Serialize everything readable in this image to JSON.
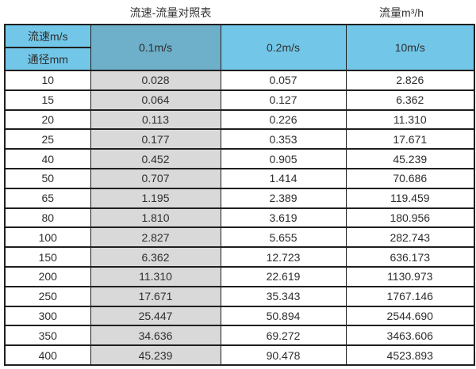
{
  "titles": {
    "left": "流速-流量对照表",
    "right": "流量m³/h"
  },
  "table": {
    "corner_top": "流速m/s",
    "corner_bottom": "通径mm",
    "columns": [
      "0.1m/s",
      "0.2m/s",
      "10m/s"
    ],
    "rows": [
      {
        "d": "10",
        "v": [
          "0.028",
          "0.057",
          "2.826"
        ]
      },
      {
        "d": "15",
        "v": [
          "0.064",
          "0.127",
          "6.362"
        ]
      },
      {
        "d": "20",
        "v": [
          "0.113",
          "0.226",
          "11.310"
        ]
      },
      {
        "d": "25",
        "v": [
          "0.177",
          "0.353",
          "17.671"
        ]
      },
      {
        "d": "40",
        "v": [
          "0.452",
          "0.905",
          "45.239"
        ]
      },
      {
        "d": "50",
        "v": [
          "0.707",
          "1.414",
          "70.686"
        ]
      },
      {
        "d": "65",
        "v": [
          "1.195",
          "2.389",
          "119.459"
        ]
      },
      {
        "d": "80",
        "v": [
          "1.810",
          "3.619",
          "180.956"
        ]
      },
      {
        "d": "100",
        "v": [
          "2.827",
          "5.655",
          "282.743"
        ]
      },
      {
        "d": "150",
        "v": [
          "6.362",
          "12.723",
          "636.173"
        ]
      },
      {
        "d": "200",
        "v": [
          "11.310",
          "22.619",
          "1130.973"
        ]
      },
      {
        "d": "250",
        "v": [
          "17.671",
          "35.343",
          "1767.146"
        ]
      },
      {
        "d": "300",
        "v": [
          "25.447",
          "50.894",
          "2544.690"
        ]
      },
      {
        "d": "350",
        "v": [
          "34.636",
          "69.272",
          "3463.606"
        ]
      },
      {
        "d": "400",
        "v": [
          "45.239",
          "90.478",
          "4523.893"
        ]
      }
    ]
  },
  "chart_data": {
    "type": "table",
    "title": "流速-流量对照表",
    "unit_label": "流量m³/h",
    "row_header": "通径mm",
    "col_header": "流速m/s",
    "categories": [
      10,
      15,
      20,
      25,
      40,
      50,
      65,
      80,
      100,
      150,
      200,
      250,
      300,
      350,
      400
    ],
    "series": [
      {
        "name": "0.1m/s",
        "values": [
          0.028,
          0.064,
          0.113,
          0.177,
          0.452,
          0.707,
          1.195,
          1.81,
          2.827,
          6.362,
          11.31,
          17.671,
          25.447,
          34.636,
          45.239
        ]
      },
      {
        "name": "0.2m/s",
        "values": [
          0.057,
          0.127,
          0.226,
          0.353,
          0.905,
          1.414,
          2.389,
          3.619,
          5.655,
          12.723,
          22.619,
          35.343,
          50.894,
          69.272,
          90.478
        ]
      },
      {
        "name": "10m/s",
        "values": [
          2.826,
          6.362,
          11.31,
          17.671,
          45.239,
          70.686,
          119.459,
          180.956,
          282.743,
          636.173,
          1130.973,
          1767.146,
          2544.69,
          3463.606,
          4523.893
        ]
      }
    ]
  },
  "colors": {
    "header_blue": "#72c7e9",
    "header_blue_dark": "#6eafc9",
    "gray_column": "#d9d9d9",
    "border": "#1f1f1f"
  }
}
